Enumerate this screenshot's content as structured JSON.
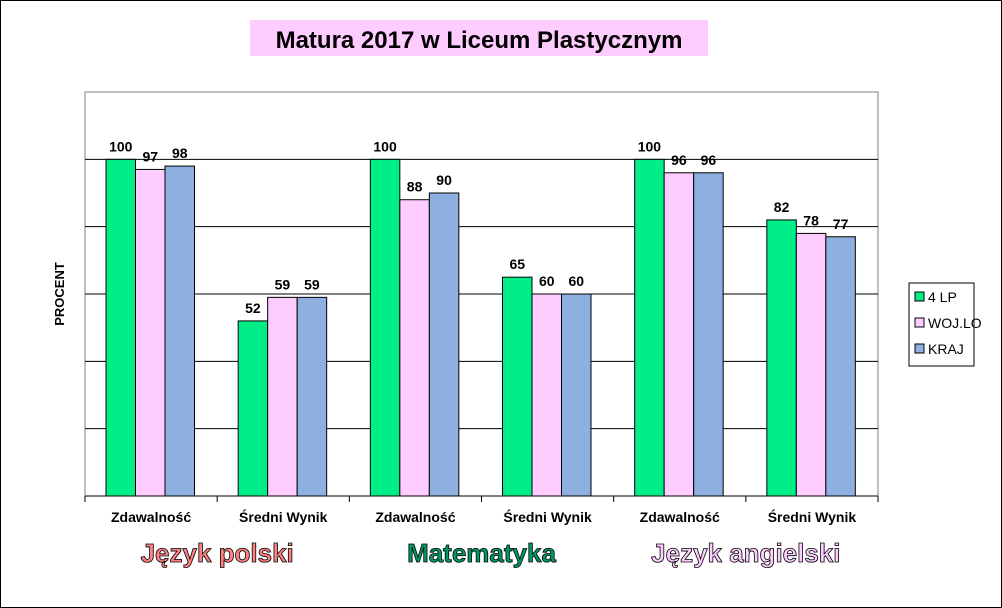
{
  "chart_data": {
    "type": "bar",
    "title": "Matura 2017  w Liceum Plastycznym",
    "ylabel": "PROCENT",
    "ylim": [
      0,
      120
    ],
    "grid": true,
    "legend_position": "right",
    "categories": [
      "Zdawalność",
      "Średni Wynik",
      "Zdawalność",
      "Średni Wynik",
      "Zdawalność",
      "Średni Wynik"
    ],
    "groups": [
      {
        "label": "Język polski",
        "color": "#ff8080"
      },
      {
        "label": "Matematyka",
        "color": "#009966"
      },
      {
        "label": "Język angielski",
        "color": "#ffccff"
      }
    ],
    "series": [
      {
        "name": "4 LP",
        "color": "#00ee88",
        "values": [
          100,
          52,
          100,
          65,
          100,
          82
        ]
      },
      {
        "name": "WOJ.LO",
        "color": "#ffccff",
        "values": [
          97,
          59,
          88,
          60,
          96,
          78
        ]
      },
      {
        "name": "KRAJ",
        "color": "#8eb0e0",
        "values": [
          98,
          59,
          90,
          60,
          96,
          77
        ]
      }
    ]
  }
}
